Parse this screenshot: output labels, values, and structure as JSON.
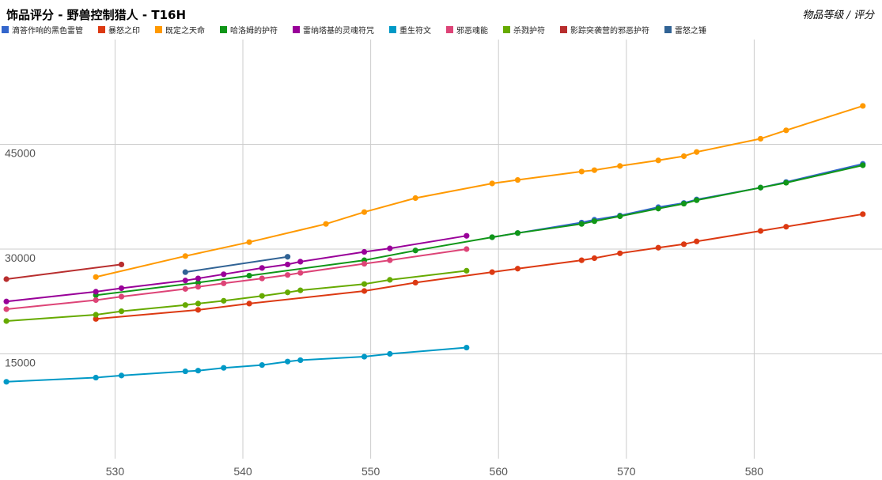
{
  "title": "饰品评分 - 野兽控制猎人 - T16H",
  "axis_note": "物品等级 / 评分",
  "chart_data": {
    "type": "line",
    "title": "饰品评分 - 野兽控制猎人 - T16H",
    "xlabel": "物品等级",
    "ylabel": "评分",
    "xlim": [
      521,
      590
    ],
    "ylim": [
      0,
      60000
    ],
    "x_ticks": [
      530,
      540,
      550,
      560,
      570,
      580
    ],
    "y_ticks": [
      15000,
      30000,
      45000
    ],
    "grid": true,
    "legend_position": "top",
    "series": [
      {
        "name": "滴答作响的黑色雷管",
        "color": "#3366cc",
        "x": [
          559.5,
          561.5,
          566.5,
          567.5,
          569.5,
          572.5,
          574.5,
          575.5,
          580.5,
          582.5,
          588.5
        ],
        "y": [
          31700,
          32300,
          33800,
          34200,
          34800,
          36000,
          36600,
          37100,
          38800,
          39600,
          42200
        ]
      },
      {
        "name": "暴怒之印",
        "color": "#dc3912",
        "x": [
          528.5,
          536.5,
          540.5,
          549.5,
          553.5,
          559.5,
          561.5,
          566.5,
          567.5,
          569.5,
          572.5,
          574.5,
          575.5,
          580.5,
          582.5,
          588.5
        ],
        "y": [
          20000,
          21300,
          22200,
          24000,
          25200,
          26700,
          27200,
          28400,
          28700,
          29400,
          30200,
          30700,
          31100,
          32600,
          33200,
          35000
        ]
      },
      {
        "name": "既定之天命",
        "color": "#ff9900",
        "x": [
          528.5,
          535.5,
          540.5,
          546.5,
          549.5,
          553.5,
          559.5,
          561.5,
          566.5,
          567.5,
          569.5,
          572.5,
          574.5,
          575.5,
          580.5,
          582.5,
          588.5
        ],
        "y": [
          26000,
          29000,
          31000,
          33600,
          35300,
          37300,
          39400,
          39900,
          41100,
          41300,
          41900,
          42700,
          43300,
          43900,
          45800,
          47000,
          50500
        ]
      },
      {
        "name": "哈洛姆的护符",
        "color": "#109618",
        "x": [
          528.5,
          536.5,
          540.5,
          549.5,
          553.5,
          559.5,
          561.5,
          566.5,
          567.5,
          569.5,
          572.5,
          574.5,
          575.5,
          580.5,
          582.5,
          588.5
        ],
        "y": [
          23400,
          25200,
          26200,
          28400,
          29800,
          31700,
          32300,
          33600,
          34000,
          34700,
          35800,
          36500,
          37000,
          38800,
          39500,
          42000
        ]
      },
      {
        "name": "雷纳塔基的灵魂符咒",
        "color": "#990099",
        "x": [
          521.5,
          528.5,
          530.5,
          535.5,
          536.5,
          538.5,
          541.5,
          543.5,
          544.5,
          549.5,
          551.5,
          557.5
        ],
        "y": [
          22500,
          23900,
          24400,
          25500,
          25800,
          26400,
          27300,
          27800,
          28200,
          29600,
          30100,
          31900
        ]
      },
      {
        "name": "重生符文",
        "color": "#0099c6",
        "x": [
          521.5,
          528.5,
          530.5,
          535.5,
          536.5,
          538.5,
          541.5,
          543.5,
          544.5,
          549.5,
          551.5,
          557.5
        ],
        "y": [
          11000,
          11600,
          11900,
          12500,
          12600,
          13000,
          13400,
          13900,
          14100,
          14600,
          15000,
          15900
        ]
      },
      {
        "name": "邪恶魂能",
        "color": "#dd4477",
        "x": [
          521.5,
          528.5,
          530.5,
          535.5,
          536.5,
          538.5,
          541.5,
          543.5,
          544.5,
          549.5,
          551.5,
          557.5
        ],
        "y": [
          21400,
          22700,
          23200,
          24300,
          24600,
          25100,
          25800,
          26300,
          26600,
          27900,
          28400,
          30000
        ]
      },
      {
        "name": "杀戮护符",
        "color": "#66aa00",
        "x": [
          521.5,
          528.5,
          530.5,
          535.5,
          536.5,
          538.5,
          541.5,
          543.5,
          544.5,
          549.5,
          551.5,
          557.5
        ],
        "y": [
          19700,
          20600,
          21100,
          22000,
          22200,
          22600,
          23300,
          23800,
          24100,
          25000,
          25600,
          26900
        ]
      },
      {
        "name": "影踪突袭营的邪恶护符",
        "color": "#b82e2e",
        "x": [
          521.5,
          530.5
        ],
        "y": [
          25700,
          27800
        ]
      },
      {
        "name": "雷怒之锤",
        "color": "#316395",
        "x": [
          535.5,
          543.5
        ],
        "y": [
          26700,
          28900
        ]
      }
    ]
  }
}
